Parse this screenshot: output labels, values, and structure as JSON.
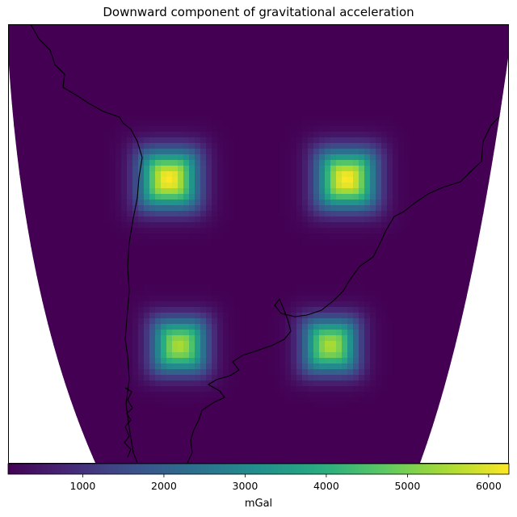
{
  "title": "Downward component of gravitational acceleration",
  "chart_data": {
    "type": "heatmap",
    "title": "Downward component of gravitational acceleration",
    "colormap": "viridis",
    "projection": "map (South America, orthographic-like)",
    "background_value": 80,
    "colorbar": {
      "label": "mGal",
      "range": [
        80,
        6250
      ],
      "ticks": [
        1000,
        2000,
        3000,
        4000,
        5000,
        6000
      ],
      "tick_labels": [
        "1000",
        "2000",
        "3000",
        "4000",
        "5000",
        "6000"
      ]
    },
    "anomalies": [
      {
        "name": "northwest",
        "peak": 6250
      },
      {
        "name": "northeast",
        "peak": 6250
      },
      {
        "name": "southwest",
        "peak": 5500
      },
      {
        "name": "southeast",
        "peak": 5500
      }
    ],
    "coastlines": true,
    "grid": false
  }
}
